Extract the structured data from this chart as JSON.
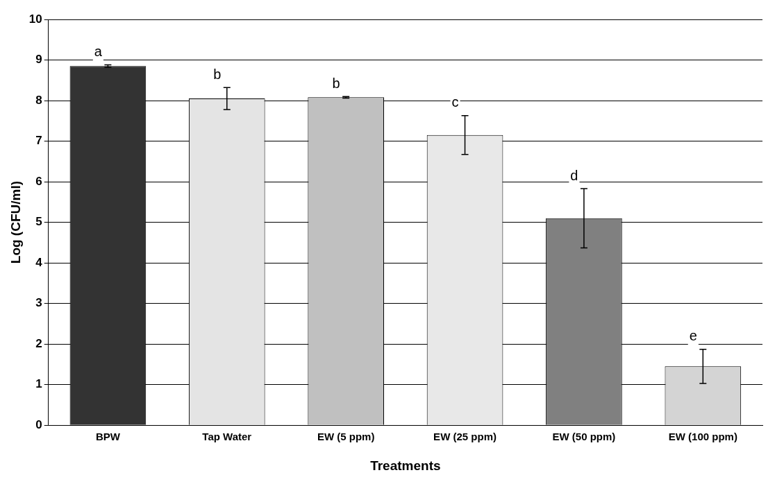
{
  "chart_data": {
    "type": "bar",
    "xlabel": "Treatments",
    "ylabel": "Log (CFU/ml)",
    "categories": [
      "BPW",
      "Tap Water",
      "EW (5 ppm)",
      "EW (25 ppm)",
      "EW (50 ppm)",
      "EW (100 ppm)"
    ],
    "values": [
      8.85,
      8.05,
      8.08,
      7.15,
      5.1,
      1.45
    ],
    "errors": [
      0.03,
      0.27,
      0.02,
      0.48,
      0.73,
      0.42
    ],
    "colors": [
      "#333333",
      "#e4e4e4",
      "#c0c0c0",
      "#e8e8e8",
      "#808080",
      "#d4d4d4"
    ],
    "ylim": [
      0,
      10
    ],
    "yticks": [
      0,
      1,
      2,
      3,
      4,
      5,
      6,
      7,
      8,
      9,
      10
    ],
    "grid": "y",
    "legend": false,
    "annotations": [
      "a",
      "b",
      "b",
      "c",
      "d",
      "e"
    ]
  }
}
